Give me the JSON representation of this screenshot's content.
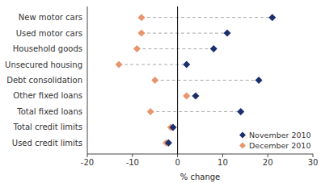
{
  "chart_data": {
    "type": "dot",
    "orientation": "horizontal",
    "categories": [
      "New motor cars",
      "Used motor cars",
      "Household goods",
      "Unsecured housing",
      "Debt consolidation",
      "Other fixed loans",
      "Total fixed loans",
      "Total credit limits",
      "Used credit limits"
    ],
    "series": [
      {
        "name": "November 2010",
        "color": "#1a2f6b",
        "marker": "diamond",
        "values": [
          21,
          11,
          8,
          2,
          18,
          4,
          14,
          -1,
          -2
        ]
      },
      {
        "name": "December 2010",
        "color": "#e8956d",
        "marker": "diamond",
        "values": [
          -8,
          -8,
          -9,
          -13,
          -5,
          2,
          -6,
          -1.5,
          -2.5
        ]
      }
    ],
    "xlim": [
      -20,
      30
    ],
    "xticks": [
      -20,
      -10,
      0,
      10,
      20,
      30
    ],
    "xlabel": "% change",
    "legend": "lower right",
    "grid": false
  }
}
